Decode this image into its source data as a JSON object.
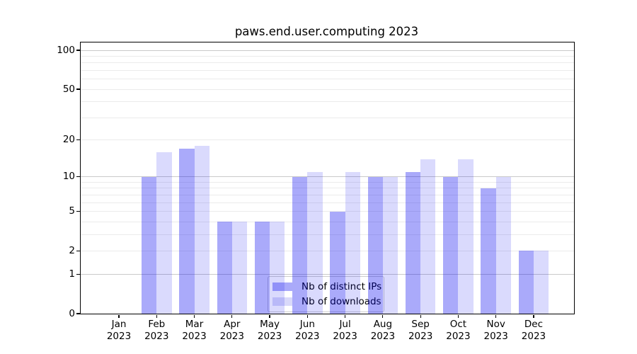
{
  "chart_data": {
    "type": "bar",
    "title": "paws.end.user.computing 2023",
    "categories": [
      "Jan",
      "Feb",
      "Mar",
      "Apr",
      "May",
      "Jun",
      "Jul",
      "Aug",
      "Sep",
      "Oct",
      "Nov",
      "Dec"
    ],
    "x_year": "2023",
    "series": [
      {
        "name": "Nb of distinct IPs",
        "fill": "rgba(5,5,240,0.34)",
        "legend_color": "#aaaafa",
        "values": [
          0,
          10,
          17,
          4,
          4,
          10,
          5,
          10,
          11,
          10,
          8,
          2
        ]
      },
      {
        "name": "Nb of downloads",
        "fill": "rgba(5,5,240,0.15)",
        "legend_color": "#d9d9fa",
        "values": [
          0,
          16,
          18,
          4,
          4,
          11,
          11,
          10,
          14,
          14,
          10,
          2
        ]
      }
    ],
    "yscale": "log1p",
    "ylim": [
      0,
      114.6
    ],
    "yticks": [
      0,
      1,
      2,
      5,
      10,
      20,
      50,
      100
    ],
    "ytick_labels": [
      "0",
      "1",
      "2",
      "5",
      "10",
      "20",
      "50",
      "100"
    ],
    "major_gridlines": [
      1,
      10,
      100
    ],
    "minor_gridlines": [
      2,
      3,
      4,
      5,
      6,
      7,
      8,
      9,
      20,
      30,
      40,
      50,
      60,
      70,
      80,
      90
    ],
    "grid": true,
    "xlabel": "",
    "ylabel": "",
    "legend": {
      "position": "lower center"
    }
  },
  "colors": {
    "bar_ips": "#aaaafa",
    "bar_downloads": "#d9d9fa",
    "grid_major": "#c9c9c9",
    "grid_minor": "#ebebeb",
    "axis": "#000000",
    "legend_border": "#cccccc"
  }
}
